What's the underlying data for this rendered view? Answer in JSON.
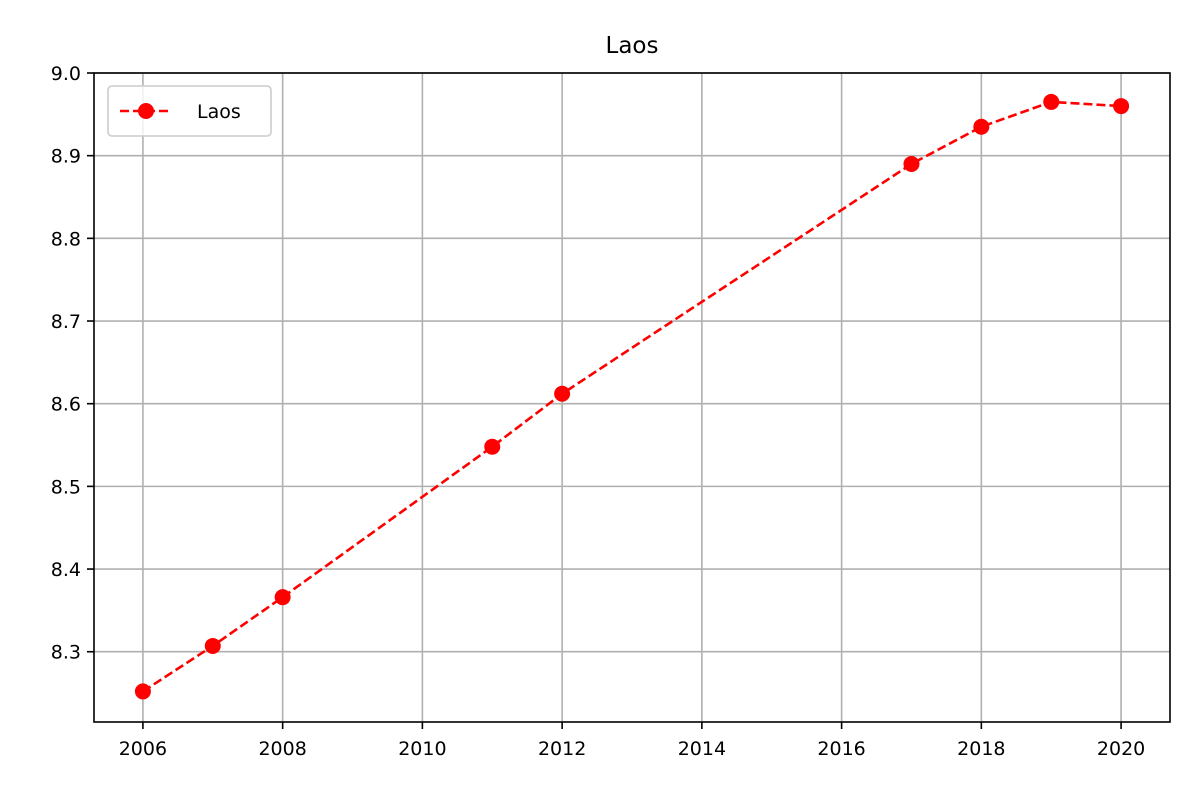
{
  "chart_data": {
    "type": "line",
    "title": "Laos",
    "xlabel": "",
    "ylabel": "",
    "x": [
      2006,
      2007,
      2008,
      2011,
      2012,
      2017,
      2018,
      2019,
      2020
    ],
    "series": [
      {
        "name": "Laos",
        "values": [
          8.252,
          8.307,
          8.366,
          8.548,
          8.612,
          8.89,
          8.935,
          8.965,
          8.96
        ],
        "color": "#ff0000",
        "line_style": "dashed",
        "marker": "circle"
      }
    ],
    "xlim": [
      2005.3,
      2020.7
    ],
    "ylim": [
      8.215,
      9.0
    ],
    "xticks": [
      "2006",
      "2008",
      "2010",
      "2012",
      "2014",
      "2016",
      "2018",
      "2020"
    ],
    "yticks": [
      "8.3",
      "8.4",
      "8.5",
      "8.6",
      "8.7",
      "8.8",
      "8.9",
      "9.0"
    ],
    "grid": true,
    "legend_position": "upper-left"
  }
}
